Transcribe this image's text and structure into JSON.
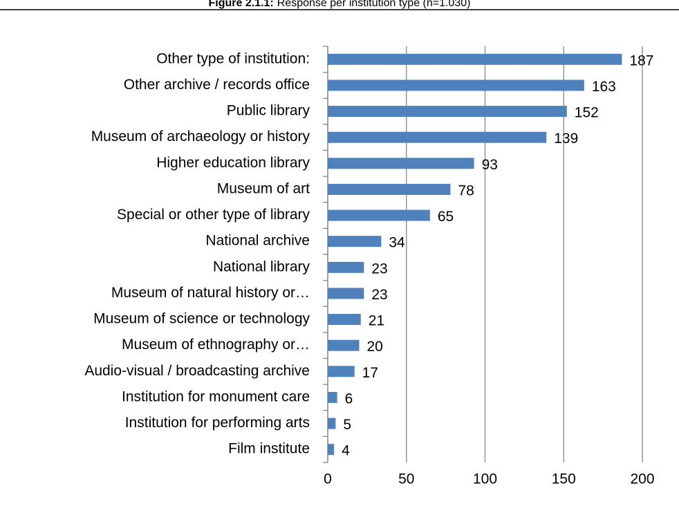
{
  "chart_data": {
    "type": "bar",
    "orientation": "horizontal",
    "title_label": "Figure 2.1.1:",
    "title": "Response per institution type (n=1.030)",
    "categories": [
      "Other type of institution:",
      "Other archive / records office",
      "Public library",
      "Museum of archaeology or history",
      "Higher education library",
      "Museum of art",
      "Special or other type of library",
      "National archive",
      "National library",
      "Museum of natural history or…",
      "Museum of science or technology",
      "Museum of ethnography or…",
      "Audio-visual / broadcasting archive",
      "Institution for monument care",
      "Institution for performing arts",
      "Film institute"
    ],
    "values": [
      187,
      163,
      152,
      139,
      93,
      78,
      65,
      34,
      23,
      23,
      21,
      20,
      17,
      6,
      5,
      4
    ],
    "color": "#4f81bd",
    "xlim": [
      0,
      200
    ],
    "xticks": [
      0,
      50,
      100,
      150,
      200
    ],
    "grid": true
  }
}
